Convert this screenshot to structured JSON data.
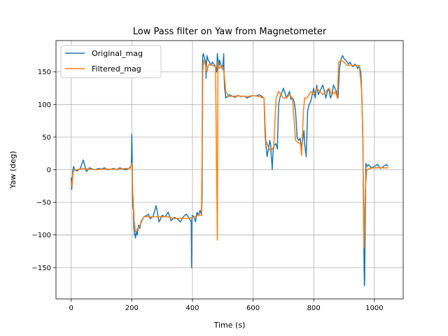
{
  "chart_data": {
    "type": "line",
    "title": "Low Pass filter on Yaw from Magnetometer",
    "xlabel": "Time (s)",
    "ylabel": "Yaw (deg)",
    "xlim": [
      -50,
      1095
    ],
    "ylim": [
      -198,
      198
    ],
    "x_ticks": [
      0,
      200,
      400,
      600,
      800,
      1000
    ],
    "y_ticks": [
      -150,
      -100,
      -50,
      0,
      50,
      100,
      150
    ],
    "x_tick_labels": [
      "0",
      "200",
      "400",
      "600",
      "800",
      "1000"
    ],
    "y_tick_labels": [
      "−150",
      "−100",
      "−50",
      "0",
      "50",
      "100",
      "150"
    ],
    "grid": true,
    "legend_position": "top-left",
    "series": [
      {
        "name": "Original_mag",
        "color": "#1f77b4",
        "x": [
          0,
          2,
          5,
          8,
          12,
          20,
          30,
          40,
          50,
          60,
          70,
          80,
          90,
          100,
          110,
          120,
          130,
          140,
          150,
          160,
          170,
          180,
          190,
          198,
          199,
          200,
          201,
          202,
          203,
          204,
          205,
          206,
          207,
          208,
          209,
          210,
          212,
          215,
          218,
          222,
          226,
          230,
          240,
          250,
          255,
          260,
          270,
          280,
          290,
          300,
          310,
          320,
          330,
          340,
          350,
          360,
          370,
          380,
          390,
          396,
          397,
          398,
          400,
          405,
          410,
          415,
          420,
          425,
          430,
          432,
          433,
          434,
          436,
          440,
          444,
          445,
          446,
          448,
          452,
          456,
          460,
          466,
          470,
          474,
          478,
          480,
          481,
          482,
          484,
          486,
          488,
          490,
          494,
          498,
          500,
          502,
          503,
          504,
          506,
          510,
          515,
          520,
          530,
          540,
          550,
          560,
          570,
          580,
          590,
          600,
          610,
          620,
          630,
          636,
          638,
          640,
          642,
          646,
          650,
          655,
          658,
          660,
          662,
          663,
          664,
          666,
          670,
          675,
          680,
          684,
          688,
          692,
          696,
          700,
          705,
          710,
          715,
          720,
          725,
          730,
          735,
          740,
          745,
          750,
          755,
          760,
          765,
          768,
          770,
          775,
          780,
          785,
          790,
          795,
          800,
          805,
          810,
          815,
          820,
          825,
          830,
          835,
          840,
          845,
          850,
          855,
          860,
          865,
          870,
          875,
          878,
          880,
          885,
          890,
          895,
          900,
          905,
          910,
          915,
          920,
          925,
          930,
          935,
          940,
          945,
          950,
          955,
          958,
          960,
          962,
          963,
          964,
          965,
          966,
          967,
          968,
          970,
          972,
          975,
          980,
          990,
          1000,
          1010,
          1020,
          1030,
          1040,
          1045
        ],
        "y": [
          -12,
          -30,
          -3,
          5,
          0,
          -2,
          2,
          15,
          -3,
          3,
          1,
          0,
          2,
          1,
          3,
          0,
          1,
          2,
          0,
          3,
          1,
          0,
          2,
          5,
          20,
          55,
          35,
          -20,
          -50,
          -60,
          -55,
          -80,
          -90,
          -95,
          -100,
          -98,
          -105,
          -95,
          -100,
          -85,
          -90,
          -80,
          -72,
          -70,
          -68,
          -75,
          -72,
          -55,
          -80,
          -70,
          -72,
          -65,
          -78,
          -73,
          -75,
          -80,
          -72,
          -68,
          -75,
          -80,
          -150,
          -78,
          -70,
          -72,
          -80,
          -65,
          -70,
          -62,
          -70,
          -40,
          160,
          175,
          178,
          170,
          165,
          140,
          160,
          175,
          168,
          165,
          160,
          165,
          162,
          160,
          155,
          150,
          160,
          178,
          170,
          165,
          160,
          168,
          160,
          155,
          158,
          170,
          178,
          150,
          125,
          110,
          112,
          115,
          113,
          111,
          114,
          112,
          113,
          110,
          112,
          114,
          113,
          115,
          112,
          110,
          80,
          50,
          40,
          20,
          30,
          45,
          38,
          20,
          10,
          0,
          10,
          30,
          38,
          40,
          32,
          100,
          110,
          115,
          120,
          125,
          118,
          110,
          115,
          120,
          108,
          110,
          105,
          90,
          50,
          45,
          48,
          35,
          50,
          60,
          40,
          20,
          90,
          100,
          105,
          115,
          125,
          110,
          130,
          115,
          120,
          125,
          130,
          120,
          110,
          120,
          125,
          110,
          115,
          130,
          125,
          120,
          110,
          110,
          155,
          170,
          175,
          170,
          168,
          165,
          162,
          165,
          160,
          158,
          162,
          160,
          155,
          160,
          150,
          120,
          90,
          50,
          0,
          -50,
          -100,
          -150,
          -178,
          -170,
          -60,
          10,
          5,
          8,
          3,
          5,
          8,
          2,
          5,
          8,
          5
        ]
      },
      {
        "name": "Filtered_mag",
        "color": "#ff7f0e",
        "x": [
          0,
          3,
          6,
          10,
          20,
          40,
          60,
          80,
          100,
          120,
          140,
          160,
          180,
          195,
          200,
          204,
          208,
          212,
          220,
          230,
          240,
          260,
          280,
          300,
          320,
          340,
          360,
          380,
          400,
          420,
          430,
          434,
          437,
          440,
          448,
          452,
          456,
          466,
          476,
          482,
          484,
          488,
          496,
          500,
          504,
          510,
          520,
          540,
          560,
          580,
          600,
          620,
          636,
          642,
          650,
          656,
          660,
          668,
          676,
          684,
          692,
          700,
          710,
          720,
          730,
          740,
          748,
          756,
          760,
          766,
          770,
          778,
          790,
          800,
          810,
          820,
          830,
          840,
          850,
          860,
          870,
          878,
          882,
          890,
          900,
          910,
          920,
          930,
          940,
          950,
          958,
          962,
          964,
          966,
          968,
          970,
          975,
          985,
          1000,
          1020,
          1040,
          1045
        ],
        "y": [
          -18,
          -25,
          -5,
          0,
          0,
          2,
          1,
          0,
          1,
          1,
          1,
          1,
          2,
          2,
          10,
          -40,
          -80,
          -95,
          -90,
          -82,
          -72,
          -72,
          -72,
          -72,
          -72,
          -75,
          -74,
          -75,
          -73,
          -70,
          -70,
          150,
          168,
          165,
          150,
          160,
          162,
          160,
          158,
          -108,
          165,
          155,
          160,
          155,
          150,
          120,
          112,
          113,
          113,
          112,
          114,
          112,
          110,
          45,
          35,
          30,
          30,
          35,
          110,
          120,
          115,
          110,
          110,
          115,
          110,
          45,
          42,
          40,
          22,
          90,
          110,
          110,
          120,
          115,
          125,
          120,
          115,
          120,
          125,
          115,
          120,
          110,
          165,
          168,
          165,
          160,
          160,
          160,
          160,
          160,
          120,
          40,
          -80,
          -120,
          -60,
          -30,
          0,
          2,
          3,
          3,
          3,
          3
        ]
      }
    ]
  }
}
